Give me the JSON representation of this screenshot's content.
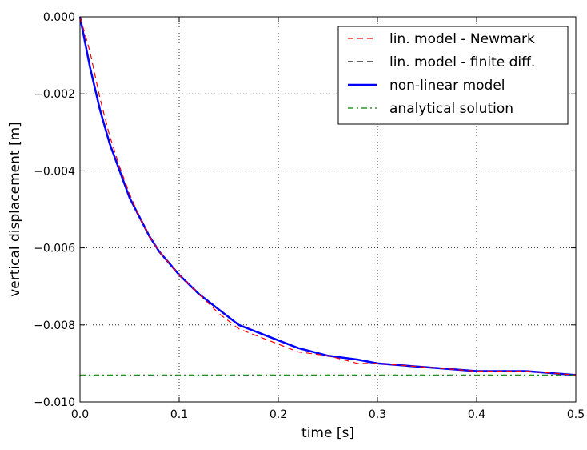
{
  "chart_data": {
    "type": "line",
    "title": "",
    "xlabel": "time [s]",
    "ylabel": "vertical displacement [m]",
    "xlim": [
      0.0,
      0.5
    ],
    "ylim": [
      -0.01,
      0.0
    ],
    "xticks": [
      "0.0",
      "0.1",
      "0.2",
      "0.3",
      "0.4",
      "0.5"
    ],
    "yticks": [
      "0.000",
      "−0.002",
      "−0.004",
      "−0.006",
      "−0.008",
      "−0.010"
    ],
    "grid": true,
    "legend_position": "top-right",
    "series": [
      {
        "name": "lin. model - Newmark",
        "color": "#ff0000",
        "style": "dashed",
        "x": [
          0.0,
          0.01,
          0.02,
          0.03,
          0.04,
          0.05,
          0.06,
          0.07,
          0.08,
          0.09,
          0.1,
          0.12,
          0.14,
          0.16,
          0.18,
          0.2,
          0.22,
          0.25,
          0.28,
          0.3,
          0.35,
          0.4,
          0.45,
          0.5
        ],
        "y": [
          0.0,
          -0.0009,
          -0.0021,
          -0.0031,
          -0.0039,
          -0.0046,
          -0.0052,
          -0.0057,
          -0.0061,
          -0.0064,
          -0.0067,
          -0.0072,
          -0.0077,
          -0.0081,
          -0.0083,
          -0.0085,
          -0.0087,
          -0.0088,
          -0.009,
          -0.009,
          -0.0091,
          -0.0092,
          -0.0092,
          -0.0093
        ]
      },
      {
        "name": "lin. model - finite diff.",
        "color": "#000000",
        "style": "dashed",
        "x": [
          0.0,
          0.01,
          0.02,
          0.03,
          0.04,
          0.05,
          0.06,
          0.07,
          0.08,
          0.09,
          0.1,
          0.12,
          0.14,
          0.16,
          0.18,
          0.2,
          0.22,
          0.25,
          0.28,
          0.3,
          0.35,
          0.4,
          0.45,
          0.5
        ],
        "y": [
          0.0,
          -0.0013,
          -0.0024,
          -0.0033,
          -0.004,
          -0.0047,
          -0.0052,
          -0.0057,
          -0.0061,
          -0.0064,
          -0.0067,
          -0.0072,
          -0.0076,
          -0.008,
          -0.0082,
          -0.0084,
          -0.0086,
          -0.0088,
          -0.0089,
          -0.009,
          -0.0091,
          -0.0092,
          -0.0092,
          -0.0093
        ]
      },
      {
        "name": "non-linear model",
        "color": "#0000ff",
        "style": "solid",
        "x": [
          0.0,
          0.01,
          0.02,
          0.03,
          0.04,
          0.05,
          0.06,
          0.07,
          0.08,
          0.09,
          0.1,
          0.12,
          0.14,
          0.16,
          0.18,
          0.2,
          0.22,
          0.25,
          0.28,
          0.3,
          0.35,
          0.4,
          0.45,
          0.5
        ],
        "y": [
          0.0,
          -0.0013,
          -0.0024,
          -0.0033,
          -0.004,
          -0.0047,
          -0.0052,
          -0.0057,
          -0.0061,
          -0.0064,
          -0.0067,
          -0.0072,
          -0.0076,
          -0.008,
          -0.0082,
          -0.0084,
          -0.0086,
          -0.0088,
          -0.0089,
          -0.009,
          -0.0091,
          -0.0092,
          -0.0092,
          -0.0093
        ]
      },
      {
        "name": "analytical solution",
        "color": "#008000",
        "style": "dashdot",
        "x": [
          0.0,
          0.5
        ],
        "y": [
          -0.0093,
          -0.0093
        ]
      }
    ]
  }
}
